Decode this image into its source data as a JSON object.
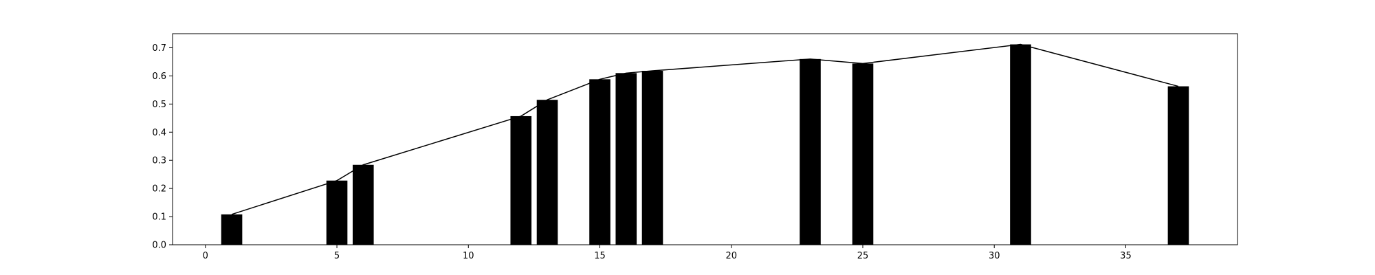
{
  "chart_data": {
    "type": "bar",
    "title": "",
    "xlabel": "",
    "ylabel": "",
    "xlim": [
      -1.25,
      39.25
    ],
    "ylim": [
      0.0,
      0.75
    ],
    "grid": false,
    "bar_color": "#000000",
    "line_color": "#000000",
    "bar_width": 0.8,
    "x_ticks": [
      0,
      5,
      10,
      15,
      20,
      25,
      30,
      35
    ],
    "y_ticks": [
      0.0,
      0.1,
      0.2,
      0.3,
      0.4,
      0.5,
      0.6,
      0.7
    ],
    "y_tick_labels": [
      "0.0",
      "0.1",
      "0.2",
      "0.3",
      "0.4",
      "0.5",
      "0.6",
      "0.7"
    ],
    "x_tick_labels": [
      "0",
      "5",
      "10",
      "15",
      "20",
      "25",
      "30",
      "35"
    ],
    "series": [
      {
        "type": "bar",
        "x": [
          1,
          5,
          6,
          12,
          13,
          15,
          16,
          17,
          23,
          25,
          31,
          37
        ],
        "values": [
          0.108,
          0.228,
          0.284,
          0.457,
          0.515,
          0.588,
          0.61,
          0.618,
          0.66,
          0.644,
          0.712,
          0.563
        ]
      },
      {
        "type": "line",
        "x": [
          1,
          5,
          6,
          12,
          13,
          15,
          16,
          17,
          23,
          25,
          31,
          37
        ],
        "values": [
          0.108,
          0.228,
          0.284,
          0.457,
          0.515,
          0.588,
          0.61,
          0.618,
          0.66,
          0.644,
          0.712,
          0.563
        ]
      }
    ]
  }
}
